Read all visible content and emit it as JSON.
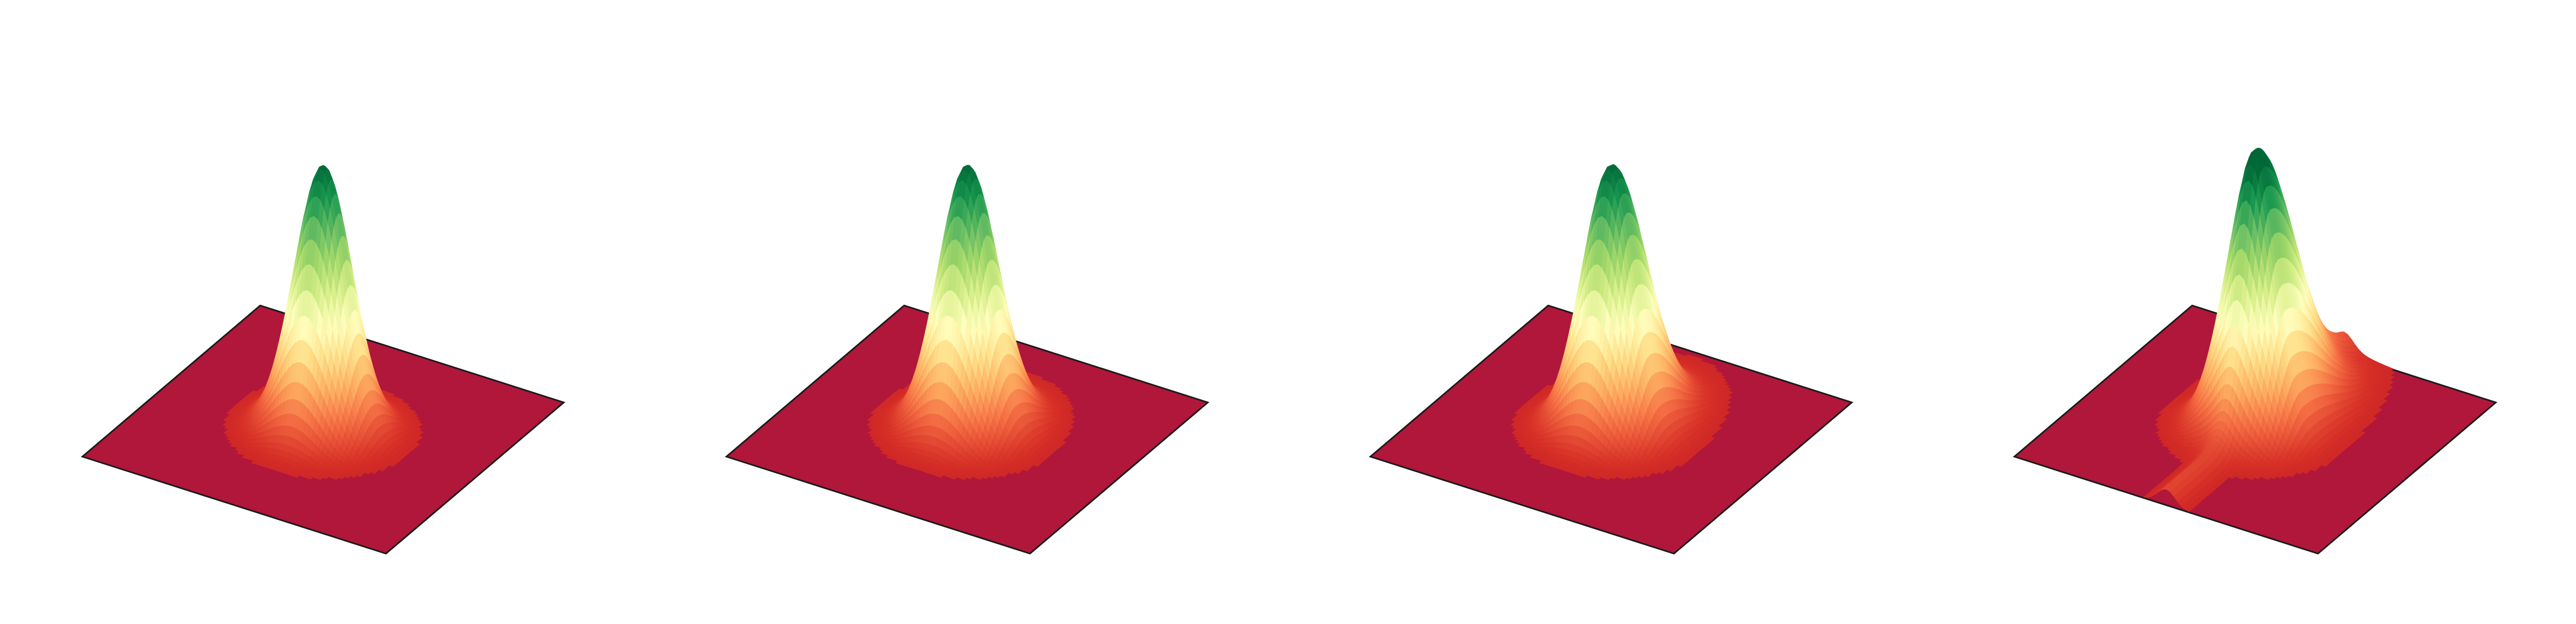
{
  "figure": {
    "background": "#ffffff"
  },
  "colormap": {
    "name": "RdYlGn",
    "stops": [
      "#a50026",
      "#d73027",
      "#f46d43",
      "#fdae61",
      "#fee08b",
      "#ffffbf",
      "#d9ef8b",
      "#a6d96a",
      "#66bd63",
      "#1a9850",
      "#006837"
    ],
    "floor_color": "#b0173a",
    "edge_color": "#1a1a1a"
  },
  "chart_data": [
    {
      "type": "surface",
      "panel": 1,
      "title": "",
      "xlabel": "",
      "ylabel": "",
      "zlabel": "",
      "axes_visible": false,
      "grid": false,
      "xlim": [
        -3,
        3
      ],
      "ylim": [
        -3,
        3
      ],
      "zlim": [
        0,
        1
      ],
      "surface": {
        "function": "gaussian",
        "amplitude": 1.0,
        "center": [
          0,
          0
        ],
        "sigma": 0.5,
        "skew": 0.0,
        "secondary_ridge": 0.0
      }
    },
    {
      "type": "surface",
      "panel": 2,
      "title": "",
      "xlabel": "",
      "ylabel": "",
      "zlabel": "",
      "axes_visible": false,
      "grid": false,
      "xlim": [
        -3,
        3
      ],
      "ylim": [
        -3,
        3
      ],
      "zlim": [
        0,
        1
      ],
      "surface": {
        "function": "gaussian",
        "amplitude": 1.0,
        "center": [
          0,
          0
        ],
        "sigma": 0.5,
        "skew": 0.3,
        "secondary_ridge": 0.0
      }
    },
    {
      "type": "surface",
      "panel": 3,
      "title": "",
      "xlabel": "",
      "ylabel": "",
      "zlabel": "",
      "axes_visible": false,
      "grid": false,
      "xlim": [
        -3,
        3
      ],
      "ylim": [
        -3,
        3
      ],
      "zlim": [
        0,
        1
      ],
      "surface": {
        "function": "gaussian",
        "amplitude": 1.0,
        "center": [
          0,
          0
        ],
        "sigma": 0.5,
        "skew": 0.7,
        "secondary_ridge": 0.0
      }
    },
    {
      "type": "surface",
      "panel": 4,
      "title": "",
      "xlabel": "",
      "ylabel": "",
      "zlabel": "",
      "axes_visible": false,
      "grid": false,
      "xlim": [
        -3,
        3
      ],
      "ylim": [
        -3,
        3
      ],
      "zlim": [
        0,
        1
      ],
      "surface": {
        "function": "gaussian",
        "amplitude": 1.0,
        "center": [
          0,
          0
        ],
        "sigma": 0.5,
        "skew": 1.2,
        "secondary_ridge": 0.06
      }
    }
  ]
}
